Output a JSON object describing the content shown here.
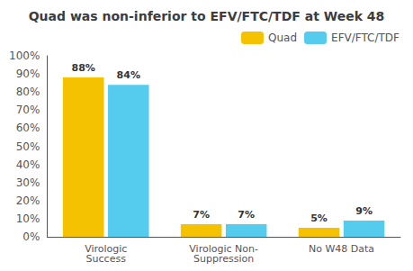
{
  "chart_data": {
    "type": "bar",
    "title": "Quad was non-inferior to EFV/FTC/TDF at Week 48",
    "categories": [
      "Virologic\nSuccess",
      "Virologic Non-\nSuppression",
      "No W48 Data"
    ],
    "series": [
      {
        "name": "Quad",
        "color": "#F5C200",
        "values": [
          88,
          7,
          5
        ],
        "value_labels": [
          "88%",
          "7%",
          "5%"
        ]
      },
      {
        "name": "EFV/FTC/TDF",
        "color": "#55CCEE",
        "values": [
          84,
          7,
          9
        ],
        "value_labels": [
          "84%",
          "7%",
          "9%"
        ]
      }
    ],
    "ylim": [
      0,
      100
    ],
    "yticks": [
      {
        "value": 0,
        "label": "0%"
      },
      {
        "value": 10,
        "label": "10%"
      },
      {
        "value": 20,
        "label": "20%"
      },
      {
        "value": 30,
        "label": "30%"
      },
      {
        "value": 40,
        "label": "40%"
      },
      {
        "value": 50,
        "label": "50%"
      },
      {
        "value": 60,
        "label": "60%"
      },
      {
        "value": 70,
        "label": "70%"
      },
      {
        "value": 80,
        "label": "80%"
      },
      {
        "value": 90,
        "label": "90%"
      },
      {
        "value": 100,
        "label": "100%"
      }
    ],
    "grid": false,
    "legend": "upper right",
    "data_labels": true
  }
}
